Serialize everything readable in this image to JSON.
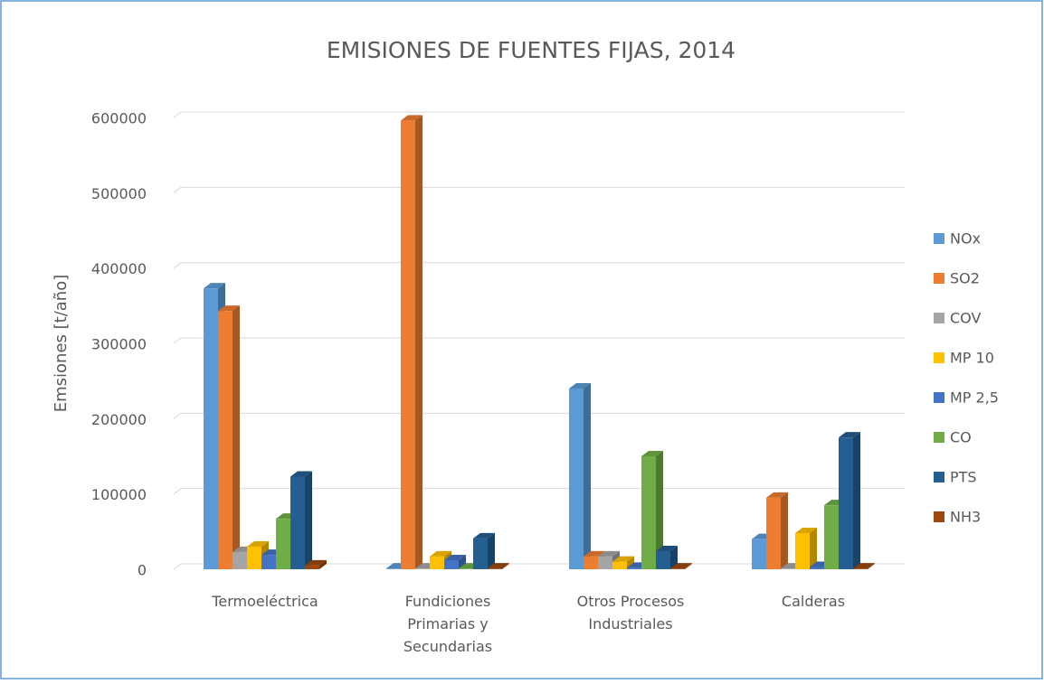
{
  "chart_data": {
    "type": "bar3d",
    "title": "EMISIONES DE FUENTES FIJAS, 2014",
    "y_label": "Emsiones [t/año]",
    "categories": [
      "Termoeléctrica",
      "Fundiciones Primarias y Secundarias",
      "Otros Procesos Industriales",
      "Calderas"
    ],
    "series": [
      {
        "name": "NOx",
        "color": "#5b9bd5",
        "values": [
          373000,
          1000,
          240000,
          40000
        ]
      },
      {
        "name": "SO2",
        "color": "#ed7d31",
        "values": [
          343000,
          596000,
          17000,
          95000
        ]
      },
      {
        "name": "COV",
        "color": "#a5a5a5",
        "values": [
          23000,
          1000,
          17000,
          1000
        ]
      },
      {
        "name": "MP 10",
        "color": "#ffc000",
        "values": [
          30000,
          17000,
          10000,
          48000
        ]
      },
      {
        "name": "MP 2,5",
        "color": "#4472c4",
        "values": [
          19000,
          12000,
          2000,
          3000
        ]
      },
      {
        "name": "CO",
        "color": "#70ad47",
        "values": [
          67000,
          1000,
          150000,
          85000
        ]
      },
      {
        "name": "PTS",
        "color": "#255e91",
        "values": [
          123000,
          41000,
          24000,
          175000
        ]
      },
      {
        "name": "NH3",
        "color": "#9e480e",
        "values": [
          5000,
          1000,
          1000,
          1000
        ]
      }
    ],
    "ylim": [
      0,
      600000
    ],
    "yticks": [
      0,
      100000,
      200000,
      300000,
      400000,
      500000,
      600000
    ],
    "grid": true,
    "legend": "right"
  }
}
